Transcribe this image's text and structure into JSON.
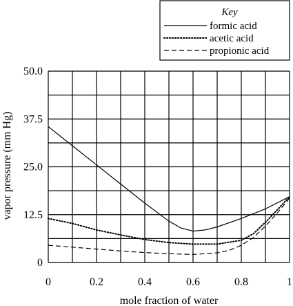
{
  "chart_data": {
    "type": "line",
    "xlabel": "mole fraction of water",
    "ylabel": "vapor pressure (mm Hg)",
    "xlim": [
      0,
      1
    ],
    "ylim": [
      0,
      50
    ],
    "x_ticks": [
      "0",
      "0.2",
      "0.4",
      "0.6",
      "0.8",
      "1"
    ],
    "y_ticks": [
      "0",
      "12.5",
      "25.0",
      "37.5",
      "50.0"
    ],
    "grid": true,
    "legend_title": "Key",
    "legend_position": "top-right",
    "series": [
      {
        "name": "formic acid",
        "style": "solid",
        "x": [
          0,
          0.1,
          0.2,
          0.3,
          0.4,
          0.5,
          0.55,
          0.6,
          0.65,
          0.7,
          0.8,
          0.9,
          1.0
        ],
        "y": [
          35.5,
          30.5,
          25.5,
          20.5,
          15.5,
          10.8,
          9.0,
          8.2,
          8.5,
          9.3,
          11.5,
          14.0,
          17.2
        ]
      },
      {
        "name": "acetic acid",
        "style": "dotted",
        "x": [
          0,
          0.1,
          0.2,
          0.3,
          0.4,
          0.5,
          0.6,
          0.7,
          0.8,
          0.85,
          0.9,
          0.95,
          1.0
        ],
        "y": [
          11.5,
          10.2,
          8.5,
          7.2,
          6.0,
          5.2,
          4.8,
          4.8,
          5.8,
          7.5,
          10.5,
          13.8,
          17.2
        ]
      },
      {
        "name": "propionic acid",
        "style": "dashed",
        "x": [
          0,
          0.1,
          0.2,
          0.3,
          0.4,
          0.5,
          0.6,
          0.7,
          0.75,
          0.8,
          0.85,
          0.9,
          0.95,
          1.0
        ],
        "y": [
          4.5,
          4.0,
          3.5,
          3.0,
          2.6,
          2.3,
          2.1,
          2.5,
          3.2,
          4.5,
          6.5,
          9.5,
          13.0,
          16.8
        ]
      }
    ]
  }
}
